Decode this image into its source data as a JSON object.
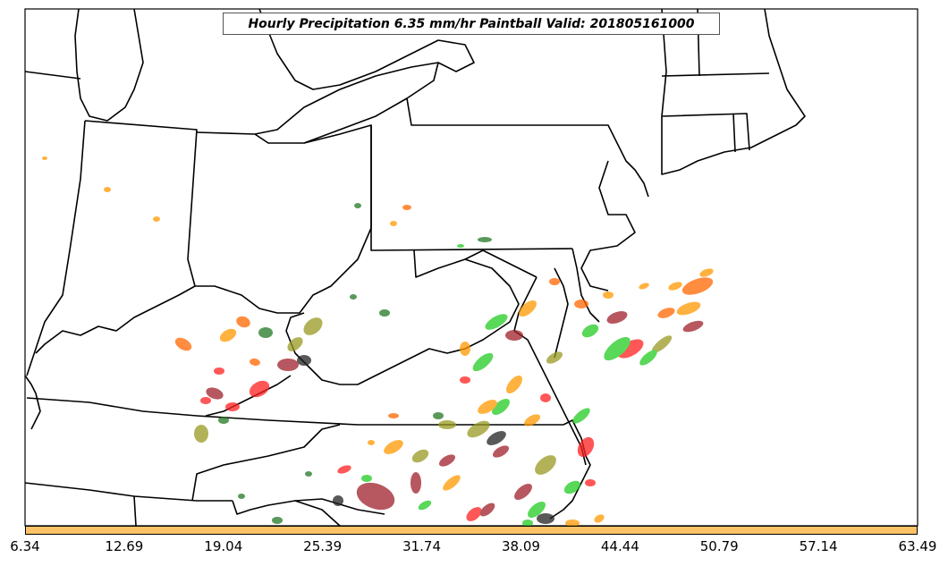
{
  "title": "Hourly Precipitation 6.35 mm/hr Paintball Valid: 201805161000",
  "colorbar": {
    "color": "#ffc266",
    "ticks": [
      "6.34",
      "12.69",
      "19.04",
      "25.39",
      "31.74",
      "38.09",
      "44.44",
      "50.79",
      "57.14",
      "63.49"
    ]
  },
  "palette": {
    "orange": "#ff9900",
    "darkorange": "#ff6600",
    "red": "#ff2020",
    "darkred": "#a0202a",
    "green": "#22cc22",
    "darkgreen": "#227722",
    "olive": "#999922",
    "black": "#222222"
  }
}
